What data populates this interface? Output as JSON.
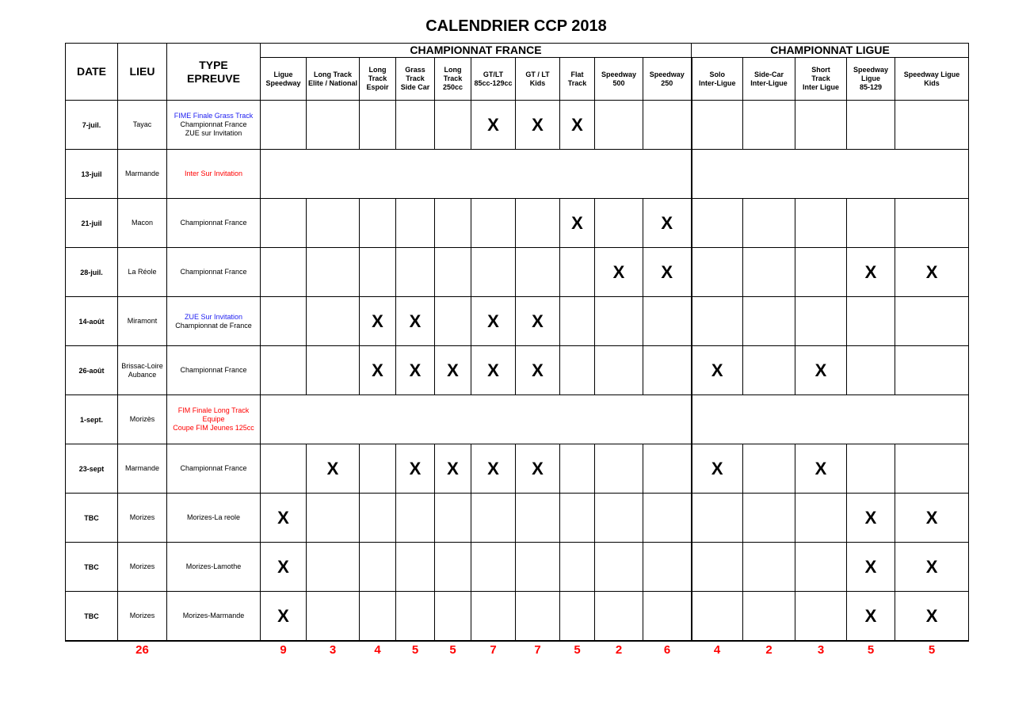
{
  "title": "CALENDRIER CCP 2018",
  "headers": {
    "date": "DATE",
    "lieu": "LIEU",
    "type_line1": "TYPE",
    "type_line2": "EPREUVE",
    "group_france": "CHAMPIONNAT FRANCE",
    "group_ligue": "CHAMPIONNAT LIGUE",
    "columns": [
      [
        "Ligue",
        "Speedway"
      ],
      [
        "Long Track",
        "Elite / National"
      ],
      [
        "Long",
        "Track",
        "Espoir"
      ],
      [
        "Grass",
        "Track",
        "Side Car"
      ],
      [
        "Long",
        "Track",
        "250cc"
      ],
      [
        "GT/LT",
        "85cc-129cc"
      ],
      [
        "GT / LT",
        "Kids"
      ],
      [
        "Flat",
        "Track"
      ],
      [
        "Speedway",
        "500"
      ],
      [
        "Speedway",
        "250"
      ],
      [
        "Solo",
        "Inter-Ligue"
      ],
      [
        "Side-Car",
        "Inter-Ligue"
      ],
      [
        "Short",
        "Track",
        "Inter Ligue"
      ],
      [
        "Speedway",
        "Ligue",
        "85-129"
      ],
      [
        "Speedway Ligue",
        "Kids"
      ]
    ]
  },
  "mark_symbol": "X",
  "rows": [
    {
      "date": "7-juil.",
      "lieu": [
        "Tayac"
      ],
      "type": [
        {
          "text": "FIME Finale Grass Track",
          "color": "#1d1df0"
        },
        {
          "text": "Championnat France",
          "color": "#000000"
        },
        {
          "text": "ZUE sur Invitation",
          "color": "#000000"
        }
      ],
      "merged": false,
      "marks": [
        0,
        0,
        0,
        0,
        0,
        1,
        1,
        1,
        0,
        0,
        0,
        0,
        0,
        0,
        0
      ]
    },
    {
      "date": "13-juil",
      "lieu": [
        "Marmande"
      ],
      "type": [
        {
          "text": "Inter Sur Invitation",
          "color": "#ff0000"
        }
      ],
      "merged": true,
      "marks": []
    },
    {
      "date": "21-juil",
      "lieu": [
        "Macon"
      ],
      "type": [
        {
          "text": "Championnat France",
          "color": "#000000"
        }
      ],
      "merged": false,
      "marks": [
        0,
        0,
        0,
        0,
        0,
        0,
        0,
        1,
        0,
        1,
        0,
        0,
        0,
        0,
        0
      ]
    },
    {
      "date": "28-juil.",
      "lieu": [
        "La Réole"
      ],
      "type": [
        {
          "text": "Championnat France",
          "color": "#000000"
        }
      ],
      "merged": false,
      "marks": [
        0,
        0,
        0,
        0,
        0,
        0,
        0,
        0,
        1,
        1,
        0,
        0,
        0,
        1,
        1
      ]
    },
    {
      "date": "14-août",
      "lieu": [
        "Miramont"
      ],
      "type": [
        {
          "text": "ZUE Sur Invitation",
          "color": "#1d1df0"
        },
        {
          "text": "Championnat de France",
          "color": "#000000"
        }
      ],
      "merged": false,
      "marks": [
        0,
        0,
        1,
        1,
        0,
        1,
        1,
        0,
        0,
        0,
        0,
        0,
        0,
        0,
        0
      ]
    },
    {
      "date": "26-août",
      "lieu": [
        "Brissac-Loire",
        "Aubance"
      ],
      "type": [
        {
          "text": "Championnat France",
          "color": "#000000"
        }
      ],
      "merged": false,
      "marks": [
        0,
        0,
        1,
        1,
        1,
        1,
        1,
        0,
        0,
        0,
        1,
        0,
        1,
        0,
        0
      ]
    },
    {
      "date": "1-sept.",
      "lieu": [
        "Morizès"
      ],
      "type": [
        {
          "text": "FIM Finale Long Track",
          "color": "#ff0000"
        },
        {
          "text": "Equipe",
          "color": "#ff0000"
        },
        {
          "text": "Coupe FIM Jeunes 125cc",
          "color": "#ff0000"
        }
      ],
      "merged": true,
      "marks": []
    },
    {
      "date": "23-sept",
      "lieu": [
        "Marmande"
      ],
      "type": [
        {
          "text": "Championnat France",
          "color": "#000000"
        }
      ],
      "merged": false,
      "marks": [
        0,
        1,
        0,
        1,
        1,
        1,
        1,
        0,
        0,
        0,
        1,
        0,
        1,
        0,
        0
      ]
    },
    {
      "date": "TBC",
      "lieu": [
        "Morizes"
      ],
      "type": [
        {
          "text": "Morizes-La reole",
          "color": "#000000"
        }
      ],
      "merged": false,
      "marks": [
        1,
        0,
        0,
        0,
        0,
        0,
        0,
        0,
        0,
        0,
        0,
        0,
        0,
        1,
        1
      ]
    },
    {
      "date": "TBC",
      "lieu": [
        "Morizes"
      ],
      "type": [
        {
          "text": "Morizes-Lamothe",
          "color": "#000000"
        }
      ],
      "merged": false,
      "marks": [
        1,
        0,
        0,
        0,
        0,
        0,
        0,
        0,
        0,
        0,
        0,
        0,
        0,
        1,
        1
      ]
    },
    {
      "date": "TBC",
      "lieu": [
        "Morizes"
      ],
      "type": [
        {
          "text": "Morizes-Marmande",
          "color": "#000000"
        }
      ],
      "merged": false,
      "marks": [
        1,
        0,
        0,
        0,
        0,
        0,
        0,
        0,
        0,
        0,
        0,
        0,
        0,
        1,
        1
      ]
    }
  ],
  "totals": {
    "lieu": "26",
    "columns": [
      "9",
      "3",
      "4",
      "5",
      "5",
      "7",
      "7",
      "5",
      "2",
      "6",
      "4",
      "2",
      "3",
      "5",
      "5"
    ]
  }
}
